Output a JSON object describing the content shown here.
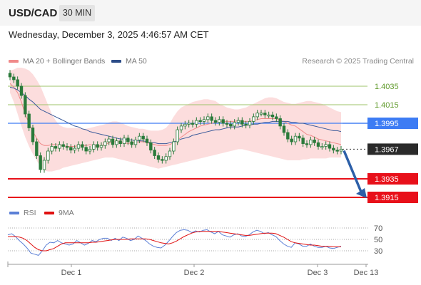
{
  "header": {
    "symbol": "USD/CAD",
    "timeframe": "30 MIN"
  },
  "datetime": "Wednesday, December 3, 2025 4:46:57 AM CET",
  "legend": {
    "ma20": "MA 20 + Bollinger Bands",
    "ma50": "MA 50",
    "credit": "Research © 2025 Trading Central"
  },
  "rsi_legend": {
    "rsi": "RSI",
    "ma": "9MA"
  },
  "colors": {
    "ma20": "#f08a8a",
    "ma50": "#3a5a9a",
    "band_fill": "#fbd4d4",
    "candle": "#2a7a3a",
    "support": "#e8101a",
    "resistance": "#9ec36a",
    "pivot": "#3d7cf4",
    "arrow": "#2c5fa8",
    "rsi": "#5b7fd6",
    "rsi_ma": "#e01010"
  },
  "chart_data": [
    {
      "type": "line",
      "title": "",
      "ylim": [
        1.3905,
        1.4055
      ],
      "x_ticks": [
        "Dec 1",
        "Dec 2",
        "Dec 3",
        "Dec 13"
      ],
      "levels": [
        {
          "value": 1.4035,
          "label": "1.4035",
          "kind": "resistance"
        },
        {
          "value": 1.4015,
          "label": "1.4015",
          "kind": "resistance"
        },
        {
          "value": 1.3995,
          "label": "1.3995",
          "kind": "pivot"
        },
        {
          "value": 1.3967,
          "label": "1.3967",
          "kind": "current"
        },
        {
          "value": 1.3935,
          "label": "1.3935",
          "kind": "support"
        },
        {
          "value": 1.3915,
          "label": "1.3915",
          "kind": "support"
        }
      ],
      "series": [
        {
          "name": "Price",
          "values": [
            1.4045,
            1.4042,
            1.4035,
            1.4025,
            1.4005,
            1.399,
            1.3975,
            1.396,
            1.3945,
            1.3955,
            1.3965,
            1.397,
            1.3968,
            1.3972,
            1.397,
            1.3969,
            1.3966,
            1.3968,
            1.3972,
            1.3969,
            1.3965,
            1.3967,
            1.3972,
            1.3969,
            1.3971,
            1.3975,
            1.3978,
            1.3972,
            1.3976,
            1.3973,
            1.3979,
            1.3975,
            1.3972,
            1.3977,
            1.3981,
            1.3978,
            1.3974,
            1.3966,
            1.396,
            1.3956,
            1.3955,
            1.3959,
            1.3965,
            1.3975,
            1.3988,
            1.3992,
            1.3994,
            1.3995,
            1.3994,
            1.3998,
            1.3997,
            1.3999,
            1.4002,
            1.3998,
            1.3996,
            1.3999,
            1.3995,
            1.3994,
            1.3992,
            1.3996,
            1.3998,
            1.3994,
            1.3993,
            1.3997,
            1.4002,
            1.4006,
            1.4006,
            1.4004,
            1.4004,
            1.4002,
            1.4,
            1.3992,
            1.3985,
            1.3978,
            1.3975,
            1.3981,
            1.3979,
            1.3973,
            1.3972,
            1.3977,
            1.3974,
            1.397,
            1.397,
            1.3972,
            1.3968,
            1.3966,
            1.3965,
            1.3967
          ]
        },
        {
          "name": "MA 20",
          "values": [
            1.4038,
            1.4034,
            1.4028,
            1.4018,
            1.4005,
            1.3995,
            1.3986,
            1.3979,
            1.3973,
            1.3971,
            1.3971,
            1.3972,
            1.3972,
            1.3971,
            1.3971,
            1.397,
            1.397,
            1.397,
            1.3971,
            1.3971,
            1.3971,
            1.3972,
            1.3971,
            1.397,
            1.3971,
            1.3972,
            1.3974,
            1.3975,
            1.3975,
            1.3975,
            1.3974,
            1.3973,
            1.3974,
            1.3974,
            1.3975,
            1.3975,
            1.3974,
            1.3973,
            1.3972,
            1.3971,
            1.3971,
            1.3971,
            1.3972,
            1.3974,
            1.3977,
            1.398,
            1.3983,
            1.3986,
            1.3988,
            1.399,
            1.3992,
            1.3993,
            1.3994,
            1.3995,
            1.3996,
            1.3997,
            1.3997,
            1.3997,
            1.3997,
            1.3997,
            1.3998,
            1.3997,
            1.3997,
            1.3997,
            1.3998,
            1.3999,
            1.4,
            1.4,
            1.4,
            1.4,
            1.4,
            1.3998,
            1.3997,
            1.3995,
            1.3993,
            1.3992,
            1.3989,
            1.3986,
            1.3983,
            1.3982,
            1.398,
            1.3978,
            1.3977,
            1.3976,
            1.3975,
            1.3974,
            1.3973,
            1.3972
          ]
        },
        {
          "name": "MA 50",
          "values": [
            1.4034,
            1.4033,
            1.4031,
            1.4028,
            1.4025,
            1.4021,
            1.4018,
            1.4014,
            1.401,
            1.4008,
            1.4006,
            1.4004,
            1.4002,
            1.4,
            1.3998,
            1.3996,
            1.3994,
            1.3992,
            1.3991,
            1.3989,
            1.3988,
            1.3986,
            1.3985,
            1.3984,
            1.3983,
            1.3982,
            1.3981,
            1.398,
            1.3979,
            1.3978,
            1.3978,
            1.3977,
            1.3977,
            1.3976,
            1.3976,
            1.3976,
            1.3975,
            1.3974,
            1.3974,
            1.3973,
            1.3973,
            1.3973,
            1.3974,
            1.3975,
            1.3976,
            1.3978,
            1.3979,
            1.398,
            1.3982,
            1.3983,
            1.3984,
            1.3985,
            1.3986,
            1.3987,
            1.3988,
            1.3988,
            1.3989,
            1.399,
            1.3991,
            1.3991,
            1.3991,
            1.3992,
            1.3993,
            1.3993,
            1.3994,
            1.3994,
            1.3995,
            1.3996,
            1.3996,
            1.3997,
            1.3997,
            1.3997,
            1.3997,
            1.3997,
            1.3996,
            1.3996,
            1.3995,
            1.3995,
            1.3994,
            1.3993,
            1.3992,
            1.3991,
            1.399,
            1.3989,
            1.3988,
            1.3987,
            1.3987,
            1.3986
          ]
        },
        {
          "name": "Bollinger Upper",
          "values": [
            1.4052,
            1.4053,
            1.4055,
            1.4055,
            1.4054,
            1.4052,
            1.4048,
            1.4042,
            1.4035,
            1.4025,
            1.4015,
            1.4005,
            1.3998,
            1.3993,
            1.3991,
            1.399,
            1.399,
            1.399,
            1.399,
            1.3989,
            1.3989,
            1.399,
            1.3991,
            1.3992,
            1.3993,
            1.3994,
            1.3996,
            1.3997,
            1.3997,
            1.3996,
            1.3994,
            1.3992,
            1.3991,
            1.399,
            1.3989,
            1.3989,
            1.3988,
            1.3987,
            1.3987,
            1.3987,
            1.3988,
            1.399,
            1.3995,
            1.4002,
            1.4008,
            1.4012,
            1.4014,
            1.4016,
            1.4018,
            1.4019,
            1.402,
            1.4021,
            1.4021,
            1.402,
            1.4019,
            1.4016,
            1.4014,
            1.4012,
            1.4011,
            1.401,
            1.401,
            1.4011,
            1.4012,
            1.4014,
            1.4016,
            1.4018,
            1.402,
            1.4022,
            1.4023,
            1.4023,
            1.4022,
            1.402,
            1.4018,
            1.4017,
            1.4016,
            1.4016,
            1.4017,
            1.4018,
            1.4019,
            1.4019,
            1.4018,
            1.4017,
            1.4016,
            1.4014,
            1.4012,
            1.401,
            1.4008,
            1.4007
          ]
        },
        {
          "name": "Bollinger Lower",
          "values": [
            1.4028,
            1.4018,
            1.4005,
            1.3992,
            1.398,
            1.397,
            1.3962,
            1.3955,
            1.3948,
            1.3944,
            1.3943,
            1.3943,
            1.3944,
            1.3945,
            1.3947,
            1.3948,
            1.3949,
            1.395,
            1.3951,
            1.3952,
            1.3953,
            1.3954,
            1.3955,
            1.3956,
            1.3957,
            1.3958,
            1.3958,
            1.3958,
            1.3957,
            1.3956,
            1.3955,
            1.3954,
            1.3953,
            1.3952,
            1.3951,
            1.395,
            1.3949,
            1.3948,
            1.3947,
            1.3946,
            1.3947,
            1.3948,
            1.3949,
            1.395,
            1.3951,
            1.3952,
            1.3953,
            1.3954,
            1.3955,
            1.3956,
            1.3957,
            1.3958,
            1.3959,
            1.396,
            1.3961,
            1.3962,
            1.3963,
            1.3964,
            1.3965,
            1.3966,
            1.3967,
            1.3967,
            1.3966,
            1.3965,
            1.3964,
            1.3963,
            1.3962,
            1.3961,
            1.396,
            1.3959,
            1.3958,
            1.3957,
            1.3956,
            1.3955,
            1.3955,
            1.3955,
            1.3955,
            1.3956,
            1.3956,
            1.3957,
            1.3957,
            1.3957,
            1.3957,
            1.3957,
            1.3958,
            1.3958,
            1.3958,
            1.3958
          ]
        }
      ]
    },
    {
      "type": "line",
      "title": "",
      "ylim": [
        15,
        80
      ],
      "y_ticks": [
        70,
        50,
        30
      ],
      "x_ticks": [
        "Dec 1",
        "Dec 2",
        "Dec 3",
        "Dec 13"
      ],
      "series": [
        {
          "name": "RSI",
          "values": [
            58,
            60,
            55,
            48,
            42,
            35,
            26,
            24,
            22,
            30,
            40,
            45,
            44,
            48,
            44,
            42,
            40,
            42,
            48,
            44,
            40,
            43,
            48,
            46,
            50,
            52,
            52,
            48,
            52,
            48,
            54,
            52,
            48,
            50,
            56,
            52,
            48,
            42,
            38,
            36,
            35,
            40,
            47,
            55,
            62,
            66,
            67,
            66,
            62,
            65,
            63,
            66,
            67,
            63,
            60,
            64,
            58,
            56,
            54,
            58,
            60,
            56,
            55,
            58,
            63,
            66,
            64,
            60,
            62,
            58,
            55,
            48,
            42,
            38,
            36,
            44,
            42,
            38,
            38,
            42,
            38,
            36,
            36,
            38,
            35,
            34,
            36,
            38
          ]
        },
        {
          "name": "9MA",
          "values": [
            55,
            55,
            55,
            54,
            52,
            48,
            42,
            36,
            32,
            30,
            30,
            32,
            34,
            38,
            42,
            44,
            44,
            44,
            44,
            44,
            44,
            44,
            45,
            45,
            46,
            47,
            48,
            49,
            50,
            50,
            50,
            50,
            51,
            51,
            51,
            51,
            51,
            50,
            48,
            46,
            44,
            43,
            42,
            44,
            47,
            51,
            55,
            58,
            61,
            63,
            64,
            64,
            64,
            64,
            64,
            64,
            63,
            62,
            61,
            60,
            59,
            58,
            57,
            57,
            58,
            59,
            60,
            61,
            61,
            61,
            60,
            57,
            54,
            50,
            46,
            44,
            43,
            42,
            41,
            40,
            40,
            39,
            38,
            38,
            38,
            37,
            37,
            37
          ]
        }
      ]
    }
  ]
}
